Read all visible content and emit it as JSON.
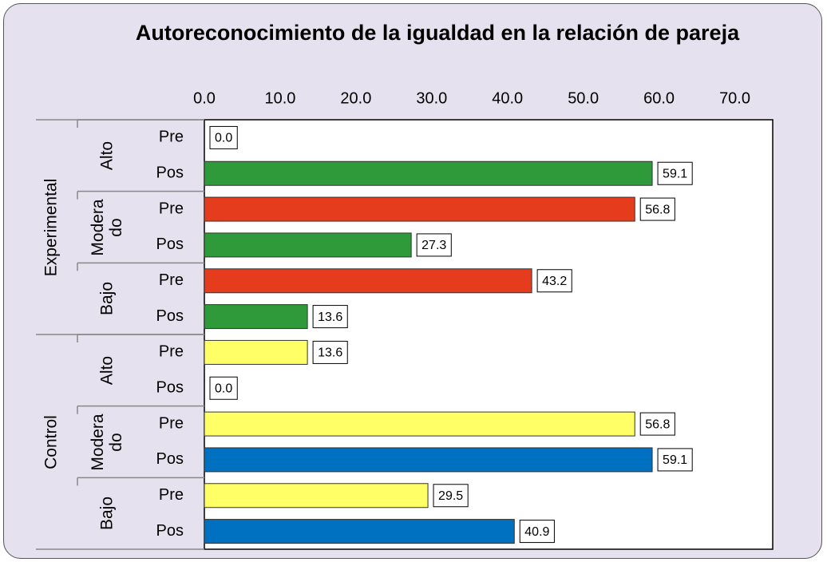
{
  "chart_data": {
    "type": "bar",
    "orientation": "horizontal",
    "title": "Autoreconocimiento de la igualdad en la relación de pareja",
    "groups": [
      {
        "name": "Experimental",
        "subgroups": [
          {
            "name": "Alto",
            "categories": [
              "Pre",
              "Pos"
            ]
          },
          {
            "name": "Moderado",
            "categories": [
              "Pre",
              "Pos"
            ]
          },
          {
            "name": "Bajo",
            "categories": [
              "Pre",
              "Pos"
            ]
          }
        ]
      },
      {
        "name": "Control",
        "subgroups": [
          {
            "name": "Alto",
            "categories": [
              "Pre",
              "Pos"
            ]
          },
          {
            "name": "Moderado",
            "categories": [
              "Pre",
              "Pos"
            ]
          },
          {
            "name": "Bajo",
            "categories": [
              "Pre",
              "Pos"
            ]
          }
        ]
      }
    ],
    "values": [
      0.0,
      59.1,
      56.8,
      27.3,
      43.2,
      13.6,
      13.6,
      0.0,
      56.8,
      59.1,
      29.5,
      40.9
    ],
    "value_labels": [
      "0.0",
      "59.1",
      "56.8",
      "27.3",
      "43.2",
      "13.6",
      "13.6",
      "0.0",
      "56.8",
      "59.1",
      "29.5",
      "40.9"
    ],
    "colors": [
      "#e63c1e",
      "#2e9a3a",
      "#e63c1e",
      "#2e9a3a",
      "#e63c1e",
      "#2e9a3a",
      "#ffff66",
      "#0070c0",
      "#ffff66",
      "#0070c0",
      "#ffff66",
      "#0070c0"
    ],
    "xlim": [
      0,
      75
    ],
    "xticks": [
      {
        "value": 0,
        "label": "0.0"
      },
      {
        "value": 10,
        "label": "10.0"
      },
      {
        "value": 20,
        "label": "20.0"
      },
      {
        "value": 30,
        "label": "30.0"
      },
      {
        "value": 40,
        "label": "40.0"
      },
      {
        "value": 50,
        "label": "50.0"
      },
      {
        "value": 60,
        "label": "60.0"
      },
      {
        "value": 70,
        "label": "70.0"
      }
    ]
  }
}
